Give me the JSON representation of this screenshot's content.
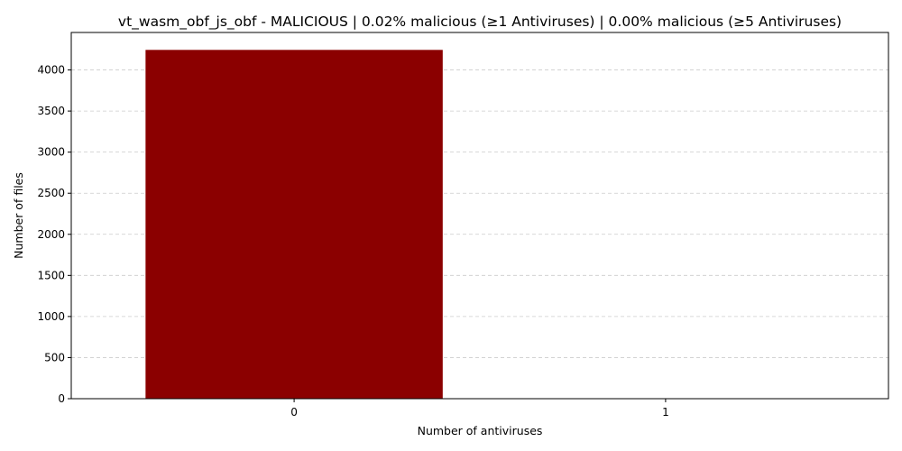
{
  "chart_data": {
    "type": "bar",
    "title": "vt_wasm_obf_js_obf - MALICIOUS | 0.02% malicious (≥1 Antiviruses) | 0.00% malicious (≥5 Antiviruses)",
    "xlabel": "Number of antiviruses",
    "ylabel": "Number of files",
    "categories": [
      "0",
      "1"
    ],
    "values": [
      4244,
      1
    ],
    "ylim": [
      0,
      4456
    ],
    "yticks": [
      0,
      500,
      1000,
      1500,
      2000,
      2500,
      3000,
      3500,
      4000
    ],
    "grid": "y-dashed",
    "bar_color": "#8b0000"
  }
}
